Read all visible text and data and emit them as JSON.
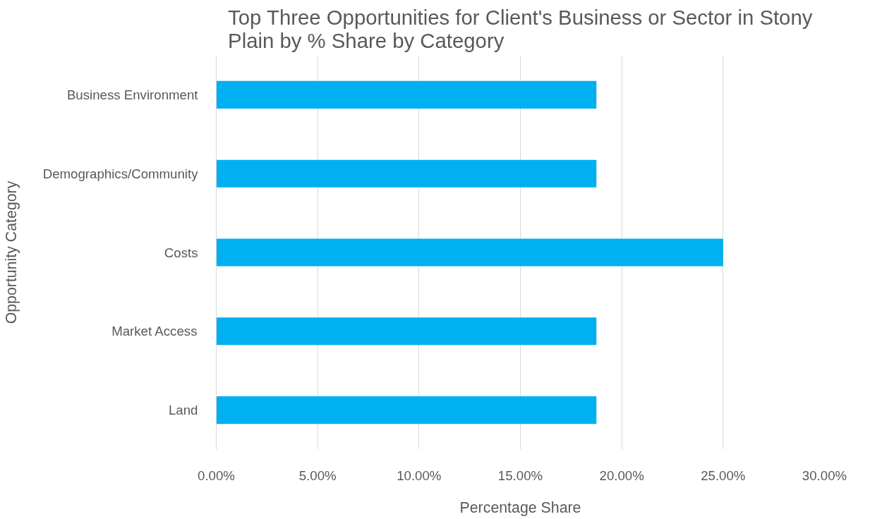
{
  "chart_data": {
    "type": "bar",
    "orientation": "horizontal",
    "title": "Top Three Opportunities for Client's Business or Sector in Stony Plain by % Share by Category",
    "xlabel": "Percentage Share",
    "ylabel": "Opportunity Category",
    "categories": [
      "Business Environment",
      "Demographics/Community",
      "Costs",
      "Market Access",
      "Land"
    ],
    "values": [
      18.75,
      18.75,
      25,
      18.75,
      18.75
    ],
    "color": "#00b0f0",
    "xlim": [
      0,
      30
    ],
    "xticks": [
      {
        "value": 0,
        "label": "0.00%"
      },
      {
        "value": 5,
        "label": "5.00%"
      },
      {
        "value": 10,
        "label": "10.00%"
      },
      {
        "value": 15,
        "label": "15.00%"
      },
      {
        "value": 20,
        "label": "20.00%"
      },
      {
        "value": 25,
        "label": "25.00%"
      },
      {
        "value": 30,
        "label": "30.00%"
      }
    ],
    "grid": "x"
  }
}
